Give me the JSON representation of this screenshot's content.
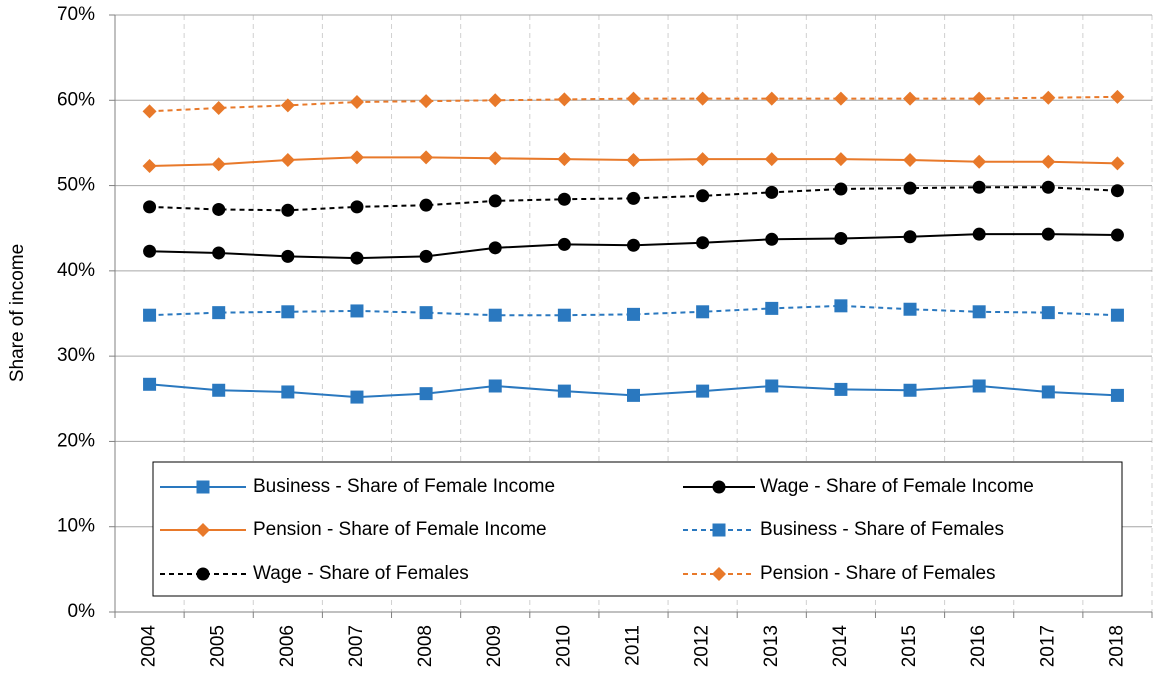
{
  "chart_data": {
    "type": "line",
    "y_label": "Share of income",
    "categories": [
      "2004",
      "2005",
      "2006",
      "2007",
      "2008",
      "2009",
      "2010",
      "2011",
      "2012",
      "2013",
      "2014",
      "2015",
      "2016",
      "2017",
      "2018"
    ],
    "ylim": [
      0,
      70
    ],
    "yticks": [
      {
        "value": 0,
        "label": "0%"
      },
      {
        "value": 10,
        "label": "10%"
      },
      {
        "value": 20,
        "label": "20%"
      },
      {
        "value": 30,
        "label": "30%"
      },
      {
        "value": 40,
        "label": "40%"
      },
      {
        "value": 50,
        "label": "50%"
      },
      {
        "value": 60,
        "label": "60%"
      },
      {
        "value": 70,
        "label": "70%"
      }
    ],
    "grid": true,
    "legend": "bottom",
    "series": [
      {
        "name": "Business - Share of Female Income",
        "color": "#2a78bf",
        "marker": "square",
        "dashed": false,
        "values": [
          26.7,
          26.0,
          25.8,
          25.2,
          25.6,
          26.5,
          25.9,
          25.4,
          25.9,
          26.5,
          26.1,
          26.0,
          26.5,
          25.8,
          25.4
        ]
      },
      {
        "name": "Wage - Share of Female Income",
        "color": "#000000",
        "marker": "circle",
        "dashed": false,
        "values": [
          42.3,
          42.1,
          41.7,
          41.5,
          41.7,
          42.7,
          43.1,
          43.0,
          43.3,
          43.7,
          43.8,
          44.0,
          44.3,
          44.3,
          44.2
        ]
      },
      {
        "name": "Pension - Share of Female Income",
        "color": "#e8792a",
        "marker": "diamond",
        "dashed": false,
        "values": [
          52.3,
          52.5,
          53.0,
          53.3,
          53.3,
          53.2,
          53.1,
          53.0,
          53.1,
          53.1,
          53.1,
          53.0,
          52.8,
          52.8,
          52.6
        ]
      },
      {
        "name": "Business - Share of Females",
        "color": "#2a78bf",
        "marker": "square",
        "dashed": true,
        "values": [
          34.8,
          35.1,
          35.2,
          35.3,
          35.1,
          34.8,
          34.8,
          34.9,
          35.2,
          35.6,
          35.9,
          35.5,
          35.2,
          35.1,
          34.8
        ]
      },
      {
        "name": "Wage - Share of Females",
        "color": "#000000",
        "marker": "circle",
        "dashed": true,
        "values": [
          47.5,
          47.2,
          47.1,
          47.5,
          47.7,
          48.2,
          48.4,
          48.5,
          48.8,
          49.2,
          49.6,
          49.7,
          49.8,
          49.8,
          49.4
        ]
      },
      {
        "name": "Pension - Share of Females",
        "color": "#e8792a",
        "marker": "diamond",
        "dashed": true,
        "values": [
          58.7,
          59.1,
          59.4,
          59.8,
          59.9,
          60.0,
          60.1,
          60.2,
          60.2,
          60.2,
          60.2,
          60.2,
          60.2,
          60.3,
          60.4
        ]
      }
    ]
  }
}
